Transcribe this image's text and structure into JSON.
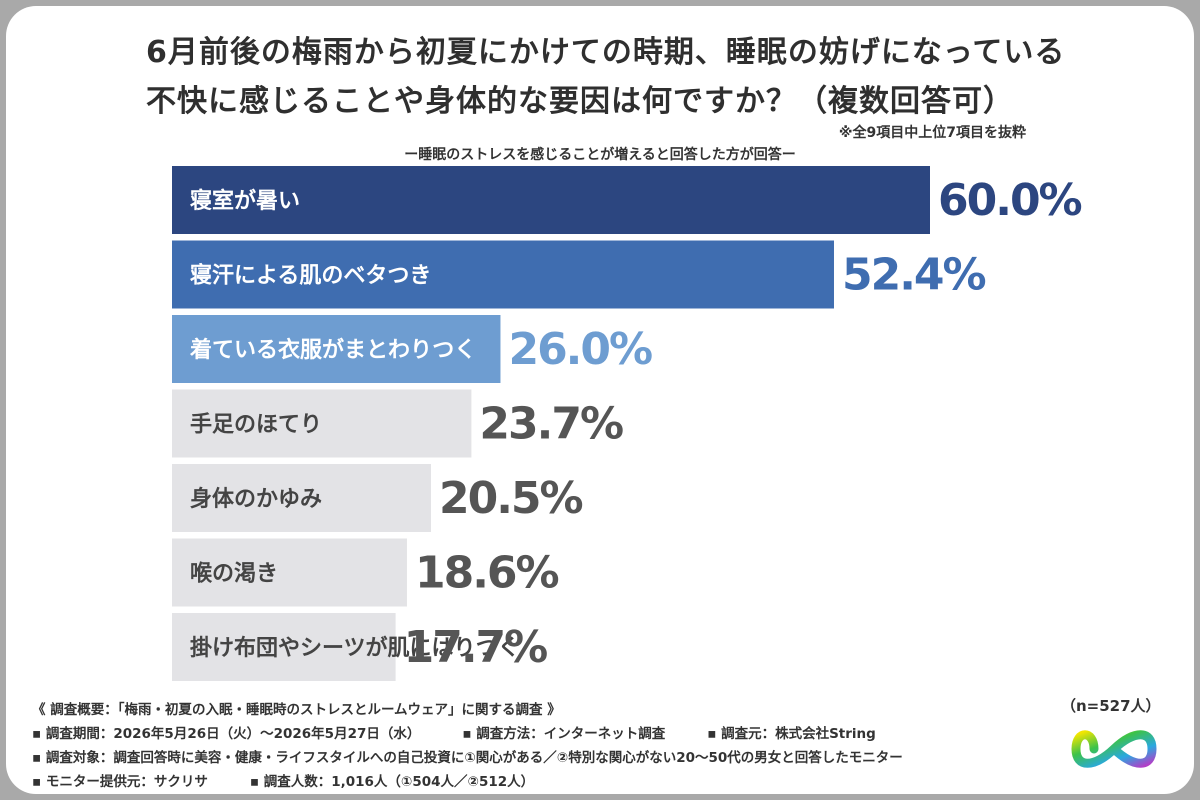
{
  "title_line1": "6月前後の梅雨から初夏にかけての時期、睡眠の妨げになっている",
  "title_line2": "不快に感じることや身体的な要因は何ですか？（複数回答可）",
  "note": "※全9項目中上位7項目を抜粋",
  "subtitle": "ー睡眠のストレスを感じることが増えると回答した方が回答ー",
  "chart_data": {
    "type": "bar",
    "orientation": "horizontal",
    "categories": [
      "寝室が暑い",
      "寝汗による肌のベタつき",
      "着ている衣服がまとわりつく",
      "手足のほてり",
      "身体のかゆみ",
      "喉の渇き",
      "掛け布団やシーツが肌にはりつく"
    ],
    "values": [
      60.0,
      52.4,
      26.0,
      23.7,
      20.5,
      18.6,
      17.7
    ],
    "value_labels": [
      "60.0%",
      "52.4%",
      "26.0%",
      "23.7%",
      "20.5%",
      "18.6%",
      "17.7%"
    ],
    "bar_colors": [
      "#2c4680",
      "#3f6db0",
      "#6e9dd1",
      "#e3e3e6",
      "#e3e3e6",
      "#e3e3e6",
      "#e3e3e6"
    ],
    "label_colors": [
      "#ffffff",
      "#ffffff",
      "#ffffff",
      "#444444",
      "#444444",
      "#444444",
      "#444444"
    ],
    "value_colors": [
      "#2c4680",
      "#3f6db0",
      "#6e9dd1",
      "#555555",
      "#555555",
      "#555555",
      "#555555"
    ],
    "xlim": [
      0,
      60
    ]
  },
  "sample": "（n=527人）",
  "footer": {
    "overview": "《 調査概要：「梅雨・初夏の入眠・睡眠時のストレスとルームウェア」に関する調査 》",
    "period": "▪ 調査期間：2026年5月26日（火）〜2026年5月27日（水）",
    "method": "▪ 調査方法：インターネット調査",
    "source": "▪ 調査元：株式会社String",
    "target": "▪ 調査対象：調査回答時に美容・健康・ライフスタイルへの自己投資に①関心がある／②特別な関心がない20〜50代の男女と回答したモニター",
    "provider": "▪ モニター提供元：サクリサ",
    "count": "▪ 調査人数：1,016人（①504人／②512人）"
  }
}
